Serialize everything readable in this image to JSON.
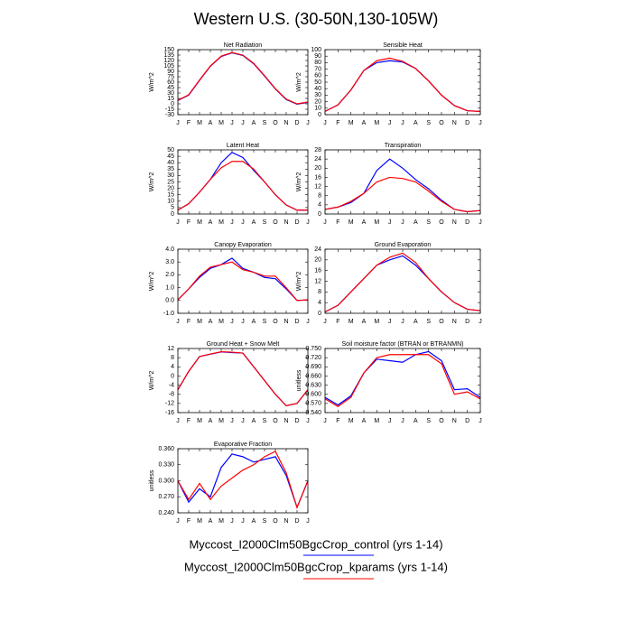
{
  "title": "Western U.S. (30-50N,130-105W)",
  "chart_data": [
    {
      "type": "line",
      "title": "Net Radiation",
      "ylabel": "W/m^2",
      "categories": [
        "J",
        "F",
        "M",
        "A",
        "M",
        "J",
        "J",
        "A",
        "S",
        "O",
        "N",
        "D",
        "J"
      ],
      "ylim": [
        -30,
        150
      ],
      "yticks": [
        -30,
        -15,
        0,
        15,
        30,
        45,
        60,
        75,
        90,
        105,
        120,
        135,
        150
      ],
      "series": [
        {
          "name": "Myccost_I2000Clm50BgcCrop_control (yrs 1-14)",
          "color": "#0000ff",
          "values": [
            9,
            24,
            65,
            104,
            131,
            141,
            134,
            111,
            77,
            41,
            12,
            -1,
            4
          ]
        },
        {
          "name": "Myccost_I2000Clm50BgcCrop_kparams (yrs 1-14)",
          "color": "#ff0000",
          "values": [
            10,
            25,
            66,
            105,
            132,
            142,
            135,
            112,
            78,
            42,
            13,
            0,
            5
          ]
        }
      ]
    },
    {
      "type": "line",
      "title": "Sensible Heat",
      "ylabel": "W/m^2",
      "categories": [
        "J",
        "F",
        "M",
        "A",
        "M",
        "J",
        "J",
        "A",
        "S",
        "O",
        "N",
        "D",
        "J"
      ],
      "ylim": [
        0,
        100
      ],
      "yticks": [
        0,
        10,
        20,
        30,
        40,
        50,
        60,
        70,
        80,
        90,
        100
      ],
      "series": [
        {
          "name": "Myccost_I2000Clm50BgcCrop_control (yrs 1-14)",
          "color": "#0000ff",
          "values": [
            5,
            15,
            38,
            68,
            80,
            83,
            81,
            71,
            52,
            30,
            14,
            6,
            5
          ]
        },
        {
          "name": "Myccost_I2000Clm50BgcCrop_kparams (yrs 1-14)",
          "color": "#ff0000",
          "values": [
            5,
            15,
            38,
            68,
            83,
            87,
            82,
            71,
            52,
            30,
            14,
            6,
            5
          ]
        }
      ]
    },
    {
      "type": "line",
      "title": "Latent Heat",
      "ylabel": "W/m^2",
      "categories": [
        "J",
        "F",
        "M",
        "A",
        "M",
        "J",
        "J",
        "A",
        "S",
        "O",
        "N",
        "D",
        "J"
      ],
      "ylim": [
        0,
        50
      ],
      "yticks": [
        0,
        5,
        10,
        15,
        20,
        25,
        30,
        35,
        40,
        45,
        50
      ],
      "series": [
        {
          "name": "Myccost_I2000Clm50BgcCrop_control (yrs 1-14)",
          "color": "#0000ff",
          "values": [
            3,
            8,
            17,
            27,
            40,
            48,
            44,
            34,
            25,
            15,
            7,
            3,
            3
          ]
        },
        {
          "name": "Myccost_I2000Clm50BgcCrop_kparams (yrs 1-14)",
          "color": "#ff0000",
          "values": [
            3,
            8,
            17,
            27,
            36,
            41,
            41,
            35,
            25,
            15,
            7,
            3,
            3
          ]
        }
      ]
    },
    {
      "type": "line",
      "title": "Transpiration",
      "ylabel": "W/m^2",
      "categories": [
        "J",
        "F",
        "M",
        "A",
        "M",
        "J",
        "J",
        "A",
        "S",
        "O",
        "N",
        "D",
        "J"
      ],
      "ylim": [
        0,
        28
      ],
      "yticks": [
        0,
        4,
        8,
        12,
        16,
        20,
        24,
        28
      ],
      "series": [
        {
          "name": "Myccost_I2000Clm50BgcCrop_control (yrs 1-14)",
          "color": "#0000ff",
          "values": [
            2,
            3,
            5,
            9,
            19,
            24,
            20,
            15,
            11,
            6,
            2,
            1,
            1.5
          ]
        },
        {
          "name": "Myccost_I2000Clm50BgcCrop_kparams (yrs 1-14)",
          "color": "#ff0000",
          "values": [
            2,
            3,
            5.5,
            9,
            14,
            16,
            15.5,
            14,
            10,
            5.5,
            2,
            1,
            1.5
          ]
        }
      ]
    },
    {
      "type": "line",
      "title": "Canopy Evaporation",
      "ylabel": "W/m^2",
      "categories": [
        "J",
        "F",
        "M",
        "A",
        "M",
        "J",
        "J",
        "A",
        "S",
        "O",
        "N",
        "D",
        "J"
      ],
      "ylim": [
        -1,
        4
      ],
      "yticks": [
        {
          "value": -1,
          "label": "-1.0"
        },
        {
          "value": 0,
          "label": "0.0"
        },
        {
          "value": 1,
          "label": "1.0"
        },
        {
          "value": 2,
          "label": "2.0"
        },
        {
          "value": 3,
          "label": "3.0"
        },
        {
          "value": 4,
          "label": "4.0"
        }
      ],
      "series": [
        {
          "name": "Myccost_I2000Clm50BgcCrop_control (yrs 1-14)",
          "color": "#0000ff",
          "values": [
            0.05,
            0.9,
            1.8,
            2.5,
            2.8,
            3.3,
            2.5,
            2.2,
            1.8,
            1.7,
            0.9,
            0,
            0.05
          ]
        },
        {
          "name": "Myccost_I2000Clm50BgcCrop_kparams (yrs 1-14)",
          "color": "#ff0000",
          "values": [
            0.05,
            0.9,
            1.9,
            2.6,
            2.8,
            3.0,
            2.4,
            2.2,
            1.9,
            1.9,
            1.0,
            0,
            0.05
          ]
        }
      ]
    },
    {
      "type": "line",
      "title": "Ground Evaporation",
      "ylabel": "W/m^2",
      "categories": [
        "J",
        "F",
        "M",
        "A",
        "M",
        "J",
        "J",
        "A",
        "S",
        "O",
        "N",
        "D",
        "J"
      ],
      "ylim": [
        0,
        24
      ],
      "yticks": [
        0,
        4,
        8,
        12,
        16,
        20,
        24
      ],
      "series": [
        {
          "name": "Myccost_I2000Clm50BgcCrop_control (yrs 1-14)",
          "color": "#0000ff",
          "values": [
            0.5,
            3,
            8,
            13,
            18,
            20,
            21.5,
            18,
            13,
            8,
            4,
            1.5,
            1
          ]
        },
        {
          "name": "Myccost_I2000Clm50BgcCrop_kparams (yrs 1-14)",
          "color": "#ff0000",
          "values": [
            0.5,
            3,
            8,
            13,
            18,
            21,
            22.5,
            19,
            13,
            8,
            4,
            1.5,
            1
          ]
        }
      ]
    },
    {
      "type": "line",
      "title": "Ground Heat + Snow Melt",
      "ylabel": "W/m^2",
      "categories": [
        "J",
        "F",
        "M",
        "A",
        "M",
        "J",
        "J",
        "A",
        "S",
        "O",
        "N",
        "D",
        "J"
      ],
      "ylim": [
        -16,
        12
      ],
      "yticks": [
        -16,
        -12,
        -8,
        -4,
        0,
        4,
        8,
        12
      ],
      "series": [
        {
          "name": "Myccost_I2000Clm50BgcCrop_control (yrs 1-14)",
          "color": "#0000ff",
          "values": [
            -6,
            2,
            8.5,
            9.5,
            10.5,
            10.2,
            10,
            4,
            -2,
            -8,
            -13,
            -12,
            -6
          ]
        },
        {
          "name": "Myccost_I2000Clm50BgcCrop_kparams (yrs 1-14)",
          "color": "#ff0000",
          "values": [
            -6,
            2,
            8.5,
            9.6,
            10.6,
            10.4,
            10,
            4,
            -2,
            -8,
            -13,
            -12,
            -6
          ]
        }
      ]
    },
    {
      "type": "line",
      "title": "Soil moisture factor (BTRAN or BTRANMN)",
      "ylabel": "unitless",
      "categories": [
        "J",
        "F",
        "M",
        "A",
        "M",
        "J",
        "J",
        "A",
        "S",
        "O",
        "N",
        "D",
        "J"
      ],
      "ylim": [
        0.54,
        0.75
      ],
      "yticks": [
        {
          "value": 0.54,
          "label": "0.540"
        },
        {
          "value": 0.57,
          "label": "0.570"
        },
        {
          "value": 0.6,
          "label": "0.600"
        },
        {
          "value": 0.63,
          "label": "0.630"
        },
        {
          "value": 0.66,
          "label": "0.660"
        },
        {
          "value": 0.69,
          "label": "0.690"
        },
        {
          "value": 0.72,
          "label": "0.720"
        },
        {
          "value": 0.75,
          "label": "0.750"
        }
      ],
      "series": [
        {
          "name": "Myccost_I2000Clm50BgcCrop_control (yrs 1-14)",
          "color": "#0000ff",
          "values": [
            0.59,
            0.565,
            0.595,
            0.67,
            0.715,
            0.71,
            0.705,
            0.73,
            0.74,
            0.71,
            0.615,
            0.618,
            0.59
          ]
        },
        {
          "name": "Myccost_I2000Clm50BgcCrop_kparams (yrs 1-14)",
          "color": "#ff0000",
          "values": [
            0.585,
            0.56,
            0.59,
            0.67,
            0.72,
            0.73,
            0.73,
            0.73,
            0.73,
            0.7,
            0.6,
            0.608,
            0.585
          ]
        }
      ]
    },
    {
      "type": "line",
      "title": "Evaporative Fraction",
      "ylabel": "unitless",
      "categories": [
        "J",
        "F",
        "M",
        "A",
        "M",
        "J",
        "J",
        "A",
        "S",
        "O",
        "N",
        "D",
        "J"
      ],
      "ylim": [
        0.24,
        0.36
      ],
      "yticks": [
        {
          "value": 0.24,
          "label": "0.240"
        },
        {
          "value": 0.27,
          "label": "0.270"
        },
        {
          "value": 0.3,
          "label": "0.300"
        },
        {
          "value": 0.33,
          "label": "0.330"
        },
        {
          "value": 0.36,
          "label": "0.360"
        }
      ],
      "series": [
        {
          "name": "Myccost_I2000Clm50BgcCrop_control (yrs 1-14)",
          "color": "#0000ff",
          "values": [
            0.3,
            0.26,
            0.285,
            0.27,
            0.325,
            0.35,
            0.345,
            0.335,
            0.34,
            0.345,
            0.31,
            0.25,
            0.3
          ]
        },
        {
          "name": "Myccost_I2000Clm50BgcCrop_kparams (yrs 1-14)",
          "color": "#ff0000",
          "values": [
            0.3,
            0.265,
            0.295,
            0.265,
            0.29,
            0.305,
            0.32,
            0.33,
            0.345,
            0.355,
            0.315,
            0.25,
            0.3
          ]
        }
      ]
    }
  ]
}
